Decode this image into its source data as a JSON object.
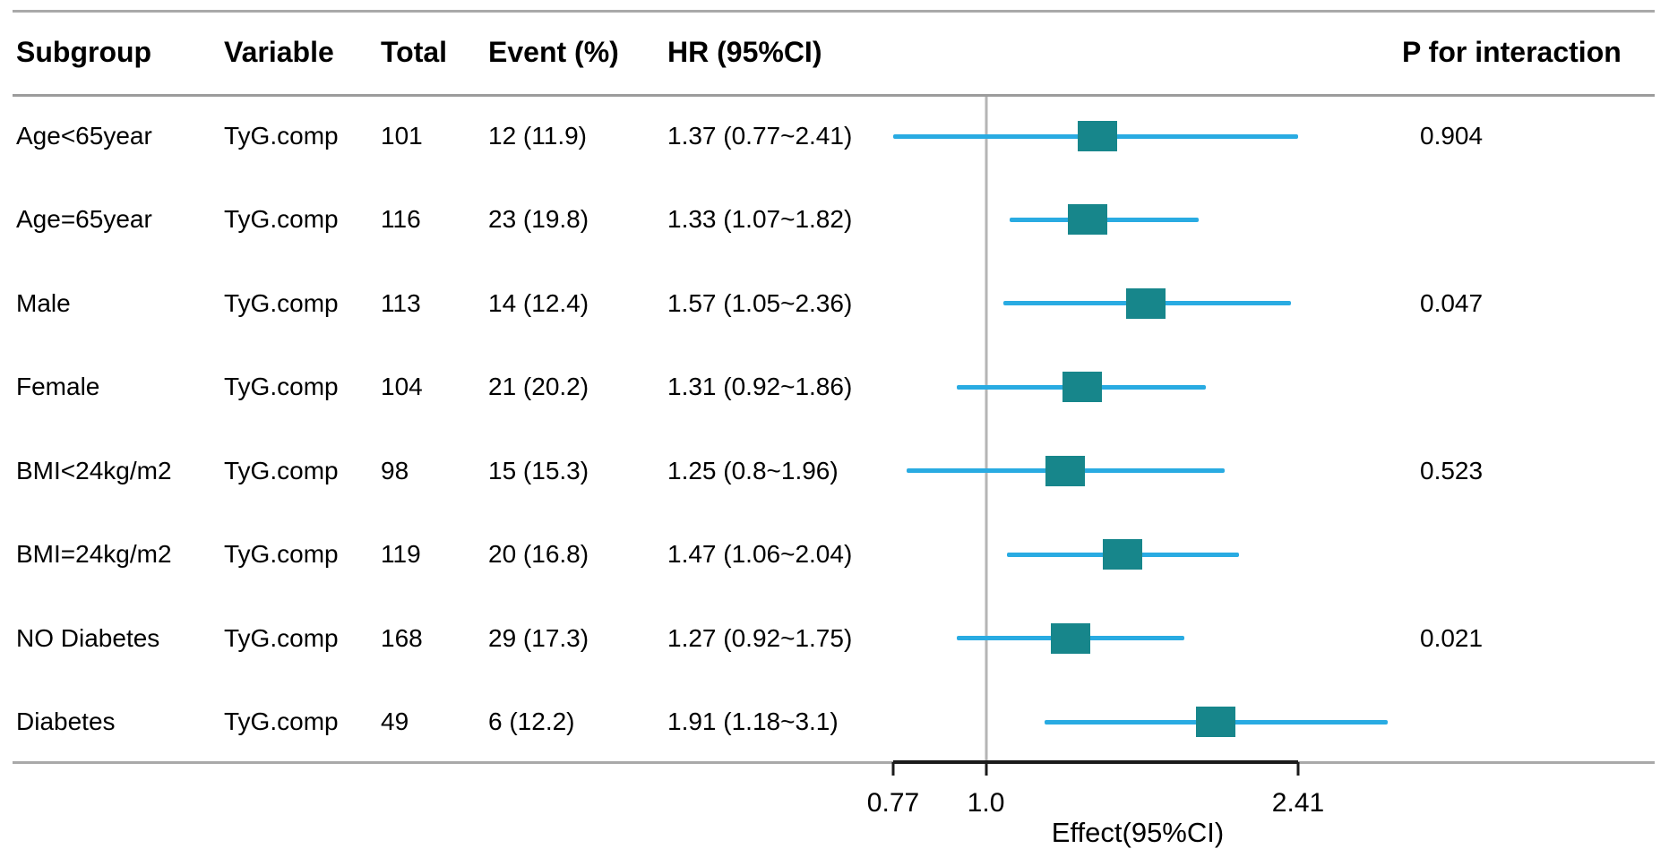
{
  "chart_data": {
    "type": "forest",
    "columns": {
      "subgroup": "Subgroup",
      "variable": "Variable",
      "total": "Total",
      "event_pct": "Event (%)",
      "hr_ci": "HR (95%CI)",
      "p_for_interaction": "P for interaction"
    },
    "rows": [
      {
        "subgroup": "Age<65year",
        "variable": "TyG.comp",
        "total": "101",
        "event_pct": "12 (11.9)",
        "hr_ci": "1.37 (0.77~2.41)",
        "p_for_interaction": "0.904",
        "hr": 1.37,
        "ci_low": 0.77,
        "ci_high": 2.41
      },
      {
        "subgroup": "Age=65year",
        "variable": "TyG.comp",
        "total": "116",
        "event_pct": "23 (19.8)",
        "hr_ci": "1.33 (1.07~1.82)",
        "hr": 1.33,
        "ci_low": 1.07,
        "ci_high": 1.82
      },
      {
        "subgroup": "Male",
        "variable": "TyG.comp",
        "total": "113",
        "event_pct": "14 (12.4)",
        "hr_ci": "1.57 (1.05~2.36)",
        "p_for_interaction": "0.047",
        "hr": 1.57,
        "ci_low": 1.05,
        "ci_high": 2.36
      },
      {
        "subgroup": "Female",
        "variable": "TyG.comp",
        "total": "104",
        "event_pct": "21 (20.2)",
        "hr_ci": "1.31 (0.92~1.86)",
        "hr": 1.31,
        "ci_low": 0.92,
        "ci_high": 1.86
      },
      {
        "subgroup": "BMI<24kg/m2",
        "variable": "TyG.comp",
        "total": "98",
        "event_pct": "15 (15.3)",
        "hr_ci": "1.25 (0.8~1.96)",
        "p_for_interaction": "0.523",
        "hr": 1.25,
        "ci_low": 0.8,
        "ci_high": 1.96
      },
      {
        "subgroup": "BMI=24kg/m2",
        "variable": "TyG.comp",
        "total": "119",
        "event_pct": "20 (16.8)",
        "hr_ci": "1.47 (1.06~2.04)",
        "hr": 1.47,
        "ci_low": 1.06,
        "ci_high": 2.04
      },
      {
        "subgroup": "NO Diabetes",
        "variable": "TyG.comp",
        "total": "168",
        "event_pct": "29 (17.3)",
        "hr_ci": "1.27 (0.92~1.75)",
        "p_for_interaction": "0.021",
        "hr": 1.27,
        "ci_low": 0.92,
        "ci_high": 1.75
      },
      {
        "subgroup": "Diabetes",
        "variable": "TyG.comp",
        "total": "49",
        "event_pct": "6 (12.2)",
        "hr_ci": "1.91 (1.18~3.1)",
        "hr": 1.91,
        "ci_low": 1.18,
        "ci_high": 3.1
      }
    ],
    "axis": {
      "scale": "log",
      "ticks": [
        0.77,
        1.0,
        2.41
      ],
      "tick_labels": [
        "0.77",
        "1.0",
        "2.41"
      ],
      "label": "Effect(95%CI)",
      "reference_line": 1.0
    },
    "colors": {
      "ci_line": "#29abe2",
      "estimate_square": "#17868b",
      "grid": "#a9a9a9",
      "axis": "#1b1b1b"
    }
  }
}
